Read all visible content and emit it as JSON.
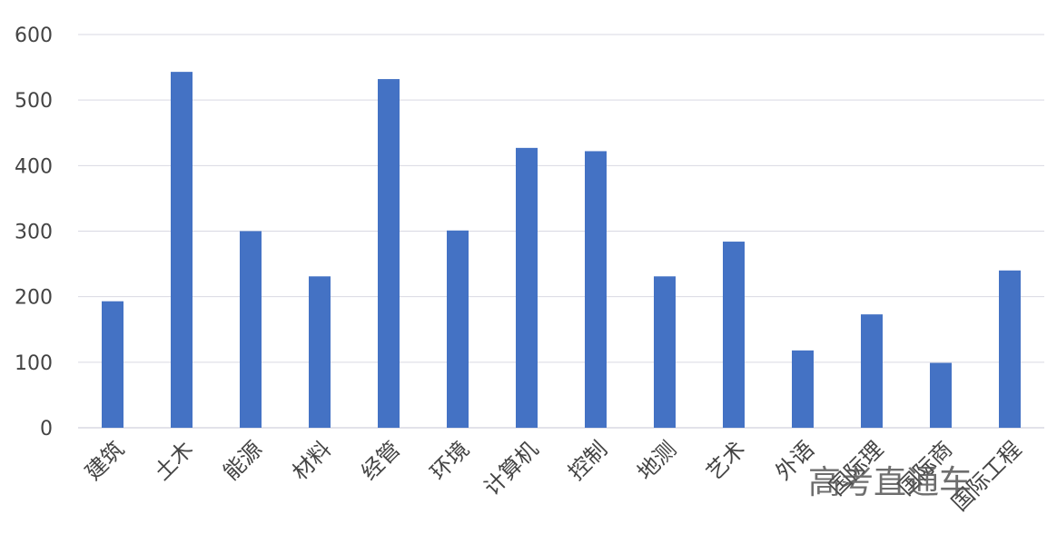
{
  "chart_data": {
    "type": "bar",
    "categories": [
      "建筑",
      "土木",
      "能源",
      "材料",
      "经管",
      "环境",
      "计算机",
      "控制",
      "地测",
      "艺术",
      "外语",
      "国际理",
      "国际商",
      "国际工程"
    ],
    "values": [
      193,
      543,
      300,
      231,
      532,
      301,
      427,
      422,
      231,
      284,
      118,
      173,
      99,
      240
    ],
    "yticks": [
      0,
      100,
      200,
      300,
      400,
      500,
      600
    ],
    "ylim": [
      0,
      600
    ],
    "grid": true,
    "bar_color": "#4472C4",
    "grid_color": "#D9D9E3"
  },
  "watermark": "高考直通车"
}
